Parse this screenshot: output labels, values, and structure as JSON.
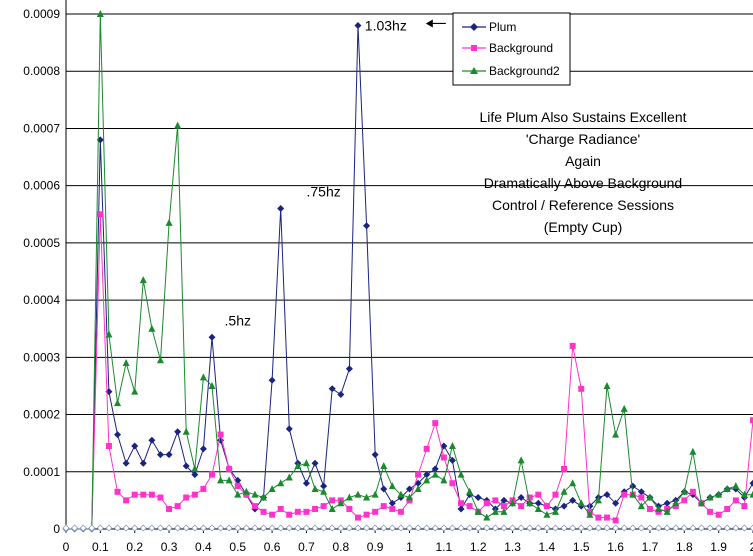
{
  "chart_data": {
    "type": "line",
    "title": "",
    "xlabel": "",
    "ylabel": "",
    "xlim": [
      0,
      2.0
    ],
    "ylim": [
      0,
      0.0009
    ],
    "grid": "horizontal",
    "legend_position": "top-right",
    "x_ticks": [
      "0",
      "0.1",
      "0.2",
      "0.3",
      "0.4",
      "0.5",
      "0.6",
      "0.7",
      "0.8",
      "0.9",
      "1",
      "1.1",
      "1.2",
      "1.3",
      "1.4",
      "1.5",
      "1.6",
      "1.7",
      "1.8",
      "1.9",
      "2"
    ],
    "y_ticks": [
      "0",
      "0.0001",
      "0.0002",
      "0.0003",
      "0.0004",
      "0.0005",
      "0.0006",
      "0.0007",
      "0.0008",
      "0.0009"
    ],
    "x": [
      0,
      0.025,
      0.05,
      0.075,
      0.1,
      0.125,
      0.15,
      0.175,
      0.2,
      0.225,
      0.25,
      0.275,
      0.3,
      0.325,
      0.35,
      0.375,
      0.4,
      0.425,
      0.45,
      0.475,
      0.5,
      0.525,
      0.55,
      0.575,
      0.6,
      0.625,
      0.65,
      0.675,
      0.7,
      0.725,
      0.75,
      0.775,
      0.8,
      0.825,
      0.85,
      0.875,
      0.9,
      0.925,
      0.95,
      0.975,
      1.0,
      1.025,
      1.05,
      1.075,
      1.1,
      1.125,
      1.15,
      1.175,
      1.2,
      1.225,
      1.25,
      1.275,
      1.3,
      1.325,
      1.35,
      1.375,
      1.4,
      1.425,
      1.45,
      1.475,
      1.5,
      1.525,
      1.55,
      1.575,
      1.6,
      1.625,
      1.65,
      1.675,
      1.7,
      1.725,
      1.75,
      1.775,
      1.8,
      1.825,
      1.85,
      1.875,
      1.9,
      1.925,
      1.95,
      1.975,
      2.0
    ],
    "series": [
      {
        "name": "Plum",
        "color": "#1a237e",
        "marker": "diamond",
        "values": [
          0,
          0,
          0,
          0,
          0.00068,
          0.00024,
          0.000165,
          0.000115,
          0.000145,
          0.000115,
          0.000155,
          0.00013,
          0.00013,
          0.00017,
          0.00011,
          9.5e-05,
          0.00014,
          0.000335,
          0.000155,
          0.000105,
          8.5e-05,
          6e-05,
          3.5e-05,
          5.5e-05,
          0.00026,
          0.00056,
          0.000175,
          0.000115,
          8e-05,
          0.000115,
          7.5e-05,
          0.000245,
          0.000235,
          0.00028,
          0.00088,
          0.00053,
          0.00013,
          7e-05,
          4.5e-05,
          5.5e-05,
          7e-05,
          8e-05,
          9.5e-05,
          0.000105,
          0.000145,
          0.00012,
          3.5e-05,
          6e-05,
          5.5e-05,
          5e-05,
          3.5e-05,
          5e-05,
          4.5e-05,
          5.5e-05,
          4.5e-05,
          4.5e-05,
          4e-05,
          3.5e-05,
          4e-05,
          5e-05,
          4e-05,
          4e-05,
          5.5e-05,
          6e-05,
          4.5e-05,
          6.5e-05,
          7.5e-05,
          6.5e-05,
          5.5e-05,
          4e-05,
          4.5e-05,
          5e-05,
          6.5e-05,
          6e-05,
          4.5e-05,
          5.5e-05,
          6e-05,
          7e-05,
          7e-05,
          5.5e-05,
          8e-05
        ]
      },
      {
        "name": "Background",
        "color": "#ff33cc",
        "marker": "square",
        "values": [
          0,
          0,
          0,
          0,
          0.00055,
          0.000145,
          6.5e-05,
          5e-05,
          6e-05,
          6e-05,
          6e-05,
          5.5e-05,
          3.5e-05,
          4e-05,
          5.5e-05,
          6e-05,
          7e-05,
          9.5e-05,
          0.000165,
          0.000105,
          7.5e-05,
          6e-05,
          4e-05,
          3e-05,
          2.5e-05,
          3.5e-05,
          2.5e-05,
          3e-05,
          3e-05,
          3.5e-05,
          4e-05,
          5e-05,
          5e-05,
          3.5e-05,
          2e-05,
          2.5e-05,
          3e-05,
          4e-05,
          3.5e-05,
          3e-05,
          5e-05,
          9.5e-05,
          0.00014,
          0.000185,
          0.000125,
          8e-05,
          4.5e-05,
          4e-05,
          3e-05,
          4.5e-05,
          5e-05,
          4e-05,
          5e-05,
          4e-05,
          5.5e-05,
          6e-05,
          4e-05,
          6e-05,
          0.000105,
          0.00032,
          0.000245,
          3e-05,
          2e-05,
          2e-05,
          1.5e-05,
          6e-05,
          6e-05,
          5.5e-05,
          3.5e-05,
          3e-05,
          3.5e-05,
          4e-05,
          5e-05,
          6.5e-05,
          4.5e-05,
          3e-05,
          2.5e-05,
          3.5e-05,
          5e-05,
          4e-05,
          0.00019
        ]
      },
      {
        "name": "Background2",
        "color": "#1b8a2e",
        "marker": "triangle",
        "values": [
          0,
          0,
          0,
          0,
          0.0009,
          0.00034,
          0.00022,
          0.00029,
          0.00024,
          0.000435,
          0.00035,
          0.000295,
          0.000535,
          0.000705,
          0.00017,
          0.000105,
          0.000265,
          0.00025,
          8.5e-05,
          8.5e-05,
          6e-05,
          6.5e-05,
          6e-05,
          5.5e-05,
          7e-05,
          8e-05,
          9e-05,
          0.00011,
          0.000115,
          7e-05,
          6.5e-05,
          3.5e-05,
          4.5e-05,
          5.5e-05,
          6e-05,
          5.5e-05,
          6e-05,
          0.00011,
          7.5e-05,
          6e-05,
          5.5e-05,
          7e-05,
          8.5e-05,
          9.5e-05,
          8.5e-05,
          0.000145,
          9.5e-05,
          6.5e-05,
          3e-05,
          2e-05,
          3e-05,
          3e-05,
          4.5e-05,
          0.00012,
          4.5e-05,
          3.5e-05,
          2.5e-05,
          3e-05,
          6.5e-05,
          8e-05,
          4.5e-05,
          2.5e-05,
          5e-05,
          0.00025,
          0.000165,
          0.00021,
          6e-05,
          4e-05,
          5.5e-05,
          3.5e-05,
          3e-05,
          4.5e-05,
          6.5e-05,
          0.000135,
          4.5e-05,
          5.5e-05,
          6e-05,
          7e-05,
          7.5e-05,
          6e-05,
          6e-05
        ]
      }
    ],
    "annotations": [
      {
        "text": "1.03hz",
        "x": 1.03,
        "y": 0.00088,
        "arrow": true
      },
      {
        "text": ".75hz",
        "x": 0.75,
        "y": 0.00056
      },
      {
        "text": ".5hz",
        "x": 0.5,
        "y": 0.000335
      }
    ],
    "note_lines": [
      "Life Plum Also Sustains Excellent",
      "'Charge Radiance'",
      "Again",
      "Dramatically Above Background",
      "Control / Reference Sessions",
      "(Empty Cup)"
    ]
  }
}
